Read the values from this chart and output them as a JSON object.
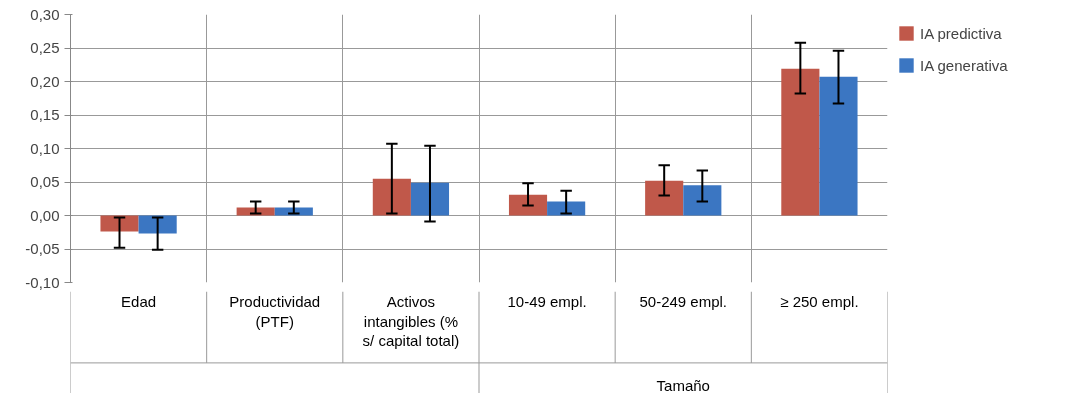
{
  "chart_data": {
    "type": "bar",
    "categories": [
      "Edad",
      "Productividad\n(PTF)",
      "Activos\nintangibles (%\ns/ capital total)",
      "10-49 empl.",
      "50-249 empl.",
      "≥ 250 empl."
    ],
    "series": [
      {
        "name": "IA predictiva",
        "color": "#c0584a",
        "values": [
          -0.024,
          0.012,
          0.055,
          0.031,
          0.052,
          0.219
        ],
        "errors": [
          [
            -0.048,
            -0.003
          ],
          [
            0.003,
            0.021
          ],
          [
            0.003,
            0.107
          ],
          [
            0.015,
            0.048
          ],
          [
            0.03,
            0.075
          ],
          [
            0.182,
            0.258
          ]
        ]
      },
      {
        "name": "IA generativa",
        "color": "#3b76c2",
        "values": [
          -0.027,
          0.012,
          0.049,
          0.021,
          0.045,
          0.207
        ],
        "errors": [
          [
            -0.051,
            -0.003
          ],
          [
            0.003,
            0.021
          ],
          [
            -0.009,
            0.104
          ],
          [
            0.003,
            0.037
          ],
          [
            0.021,
            0.067
          ],
          [
            0.167,
            0.246
          ]
        ]
      }
    ],
    "ylim": [
      -0.1,
      0.3
    ],
    "yticks": [
      {
        "value": -0.1,
        "label": "-0,10"
      },
      {
        "value": -0.05,
        "label": "-0,05"
      },
      {
        "value": 0,
        "label": "0,00"
      },
      {
        "value": 0.05,
        "label": "0,05"
      },
      {
        "value": 0.1,
        "label": "0,10"
      },
      {
        "value": 0.15,
        "label": "0,15"
      },
      {
        "value": 0.2,
        "label": "0,20"
      },
      {
        "value": 0.25,
        "label": "0,25"
      },
      {
        "value": 0.3,
        "label": "0,30"
      }
    ],
    "grid": true,
    "legend": "top right",
    "annotations": [
      "Tamaño"
    ]
  }
}
